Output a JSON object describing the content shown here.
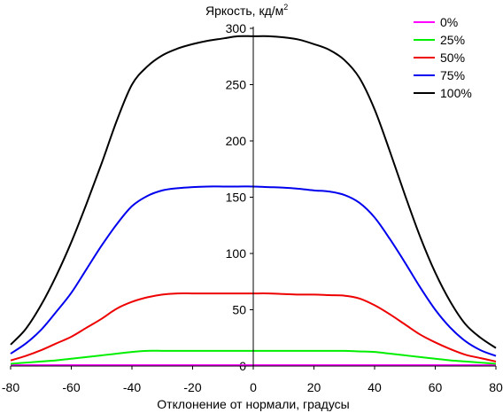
{
  "chart_data": {
    "type": "line",
    "title": "",
    "ylabel": "Яркость, кд/м",
    "ylabel_superscript": "2",
    "xlabel": "Отклонение от нормали, градусы",
    "xlim": [
      -80,
      80
    ],
    "ylim": [
      0,
      300
    ],
    "xticks": [
      -80,
      -60,
      -40,
      -20,
      0,
      20,
      40,
      60,
      80
    ],
    "yticks": [
      0,
      50,
      100,
      150,
      200,
      250,
      300
    ],
    "grid": false,
    "legend_position": "top-right",
    "x": [
      -80,
      -75,
      -70,
      -65,
      -60,
      -55,
      -50,
      -45,
      -40,
      -35,
      -30,
      -25,
      -20,
      -15,
      -10,
      -5,
      0,
      5,
      10,
      15,
      20,
      25,
      30,
      35,
      40,
      45,
      50,
      55,
      60,
      65,
      70,
      75,
      80
    ],
    "series": [
      {
        "name": "0%",
        "color": "#ff00ff",
        "values": [
          0.8,
          0.8,
          0.8,
          0.8,
          0.8,
          0.8,
          0.8,
          0.8,
          0.8,
          0.8,
          0.8,
          0.8,
          0.8,
          0.8,
          0.8,
          0.8,
          0.8,
          0.8,
          0.8,
          0.8,
          0.8,
          0.8,
          0.8,
          0.8,
          0.8,
          0.8,
          0.8,
          0.8,
          0.8,
          0.8,
          0.8,
          0.8,
          0.8
        ]
      },
      {
        "name": "25%",
        "color": "#00ee00",
        "values": [
          2,
          3,
          4,
          5,
          6.5,
          8,
          9.5,
          11,
          12.5,
          13.5,
          13.5,
          13.5,
          13.5,
          13.5,
          13.5,
          13.5,
          13.5,
          13.5,
          13.5,
          13.5,
          13.5,
          13.5,
          13.5,
          13,
          12.5,
          11,
          9.5,
          8,
          6.5,
          5,
          4,
          3,
          2
        ]
      },
      {
        "name": "50%",
        "color": "#ee0000",
        "values": [
          5,
          9,
          14,
          20,
          26,
          34,
          42,
          51,
          57,
          61,
          63.5,
          64.5,
          64.5,
          64.5,
          64.5,
          64.5,
          64.5,
          64.5,
          64,
          63.5,
          63.5,
          63,
          62.5,
          60,
          54,
          46,
          37,
          28,
          21,
          15,
          10,
          7,
          4
        ]
      },
      {
        "name": "75%",
        "color": "#0000ee",
        "values": [
          11,
          20,
          32,
          48,
          65,
          86,
          107,
          126,
          142,
          151,
          156,
          158,
          159,
          159.5,
          159.5,
          159.5,
          159.5,
          159,
          158.5,
          157.5,
          156,
          155,
          152,
          145,
          132,
          113,
          92,
          70,
          50,
          34,
          22,
          14,
          9
        ]
      },
      {
        "name": "100%",
        "color": "#000000",
        "values": [
          19,
          33,
          54,
          80,
          110,
          144,
          180,
          218,
          250,
          266,
          276,
          282,
          286,
          289,
          291,
          293,
          293,
          293,
          292,
          290,
          286,
          281,
          272,
          256,
          228,
          191,
          152,
          115,
          83,
          57,
          37,
          25,
          16
        ]
      }
    ]
  }
}
